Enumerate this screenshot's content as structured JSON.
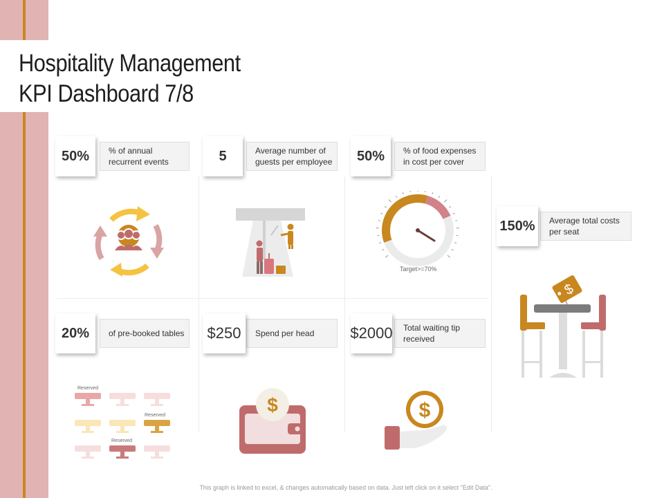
{
  "title": {
    "line1": "Hospitality Management",
    "line2": "KPI Dashboard 7/8"
  },
  "kpis": [
    {
      "value": "50%",
      "label": "% of annual recurrent events"
    },
    {
      "value": "5",
      "label": "Average number of guests per employee"
    },
    {
      "value": "50%",
      "label": "% of food expenses in cost per cover"
    },
    {
      "value": "150%",
      "label": "Average total costs per seat"
    },
    {
      "value": "20%",
      "label": "of pre-booked tables"
    },
    {
      "value": "$250",
      "label": "Spend per head"
    },
    {
      "value": "$2000",
      "label": "Total waiting tip received"
    }
  ],
  "gauge": {
    "caption": "Target>=70%",
    "fill_fraction": 0.5
  },
  "tables": {
    "reserved_label": "Reserved"
  },
  "footer": "This graph is linked to excel, & changes automatically based on data. Just left click on it select \"Edit Data\".",
  "colors": {
    "pink": "#e2b3b3",
    "gold": "#c8871f",
    "rose": "#c06b6b",
    "yellow": "#f5c342"
  },
  "icons": [
    "recycle-people-icon",
    "hotel-staff-guest-icon",
    "gauge-icon",
    "dining-table-price-icon",
    "reserved-tables-icon",
    "wallet-dollar-icon",
    "hand-coin-icon"
  ]
}
